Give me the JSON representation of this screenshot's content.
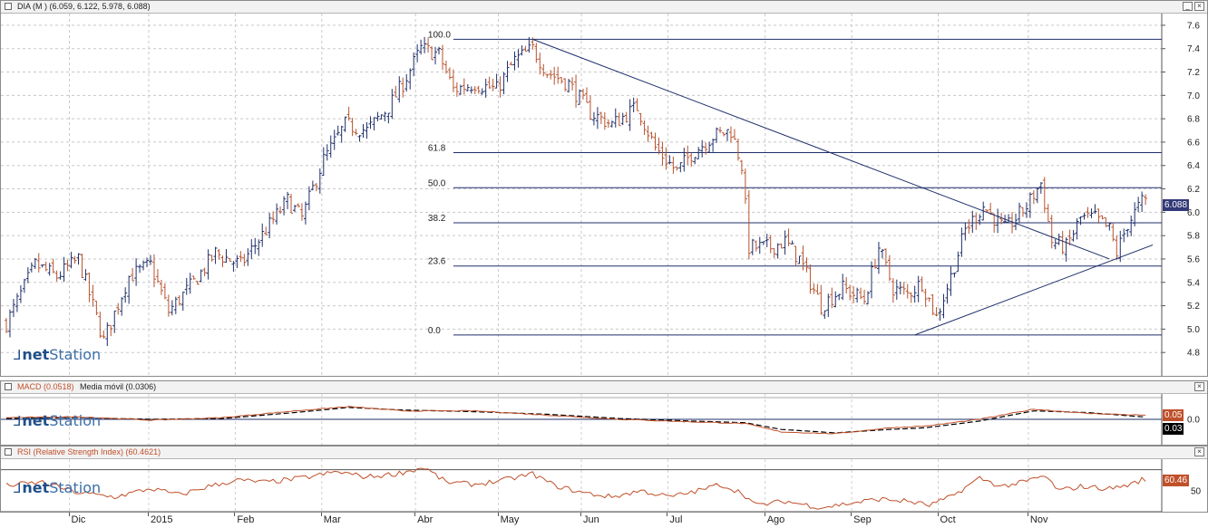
{
  "panels": {
    "price": {
      "title": "DIA (M ) (6.059, 6.122, 5.978, 6.088)",
      "last_label": "6.088",
      "last_value": 6.088
    },
    "macd": {
      "title_macd": "MACD (0.0518)",
      "title_signal": "Media móvil (0.0306)",
      "macd_label": "0.05",
      "signal_label": "0.03",
      "macd_color": "#c0502a",
      "signal_color": "#000000"
    },
    "rsi": {
      "title": "RSI (Relative Strength Index) (60.4621)",
      "last_label": "60.46",
      "level_label": "50",
      "color": "#c0502a"
    }
  },
  "logo": {
    "text_bold": "net",
    "text": "Station"
  },
  "window_buttons": {
    "min": "_",
    "close": "×"
  },
  "fib_levels": [
    {
      "label": "100.0",
      "value": 7.48
    },
    {
      "label": "61.8",
      "value": 6.51
    },
    {
      "label": "50.0",
      "value": 6.21
    },
    {
      "label": "38.2",
      "value": 5.91
    },
    {
      "label": "23.6",
      "value": 5.54
    },
    {
      "label": "0.0",
      "value": 4.95
    }
  ],
  "x_labels": [
    {
      "label": "Dic",
      "bar": 18
    },
    {
      "label": "2015",
      "bar": 40
    },
    {
      "label": "Feb",
      "bar": 64
    },
    {
      "label": "Mar",
      "bar": 88
    },
    {
      "label": "Abr",
      "bar": 114
    },
    {
      "label": "May",
      "bar": 137
    },
    {
      "label": "Jun",
      "bar": 160
    },
    {
      "label": "Jul",
      "bar": 184
    },
    {
      "label": "Ago",
      "bar": 211
    },
    {
      "label": "Sep",
      "bar": 235
    },
    {
      "label": "Oct",
      "bar": 259
    },
    {
      "label": "Nov",
      "bar": 284
    }
  ],
  "chart_data": {
    "type": "line",
    "subtype": "ohlc",
    "symbol": "DIA",
    "ylim": [
      4.6,
      7.7
    ],
    "yticks": [
      4.8,
      5.0,
      5.2,
      5.4,
      5.6,
      5.8,
      6.0,
      6.2,
      6.4,
      6.6,
      6.8,
      7.0,
      7.2,
      7.4,
      7.6
    ],
    "grid": true,
    "close_anchors": [
      [
        0,
        5.05
      ],
      [
        8,
        5.55
      ],
      [
        14,
        5.45
      ],
      [
        20,
        5.6
      ],
      [
        27,
        4.9
      ],
      [
        34,
        5.45
      ],
      [
        40,
        5.55
      ],
      [
        45,
        5.15
      ],
      [
        52,
        5.4
      ],
      [
        58,
        5.65
      ],
      [
        65,
        5.55
      ],
      [
        72,
        5.85
      ],
      [
        78,
        6.1
      ],
      [
        82,
        5.95
      ],
      [
        88,
        6.45
      ],
      [
        94,
        6.75
      ],
      [
        100,
        6.7
      ],
      [
        106,
        6.9
      ],
      [
        110,
        7.1
      ],
      [
        115,
        7.4
      ],
      [
        120,
        7.35
      ],
      [
        124,
        7.05
      ],
      [
        130,
        7.1
      ],
      [
        136,
        7.05
      ],
      [
        141,
        7.3
      ],
      [
        146,
        7.4
      ],
      [
        150,
        7.2
      ],
      [
        156,
        7.1
      ],
      [
        162,
        6.85
      ],
      [
        168,
        6.75
      ],
      [
        175,
        6.9
      ],
      [
        180,
        6.55
      ],
      [
        186,
        6.35
      ],
      [
        190,
        6.5
      ],
      [
        196,
        6.65
      ],
      [
        201,
        6.7
      ],
      [
        204,
        6.4
      ],
      [
        206,
        5.7
      ],
      [
        212,
        5.7
      ],
      [
        216,
        5.75
      ],
      [
        220,
        5.6
      ],
      [
        226,
        5.2
      ],
      [
        232,
        5.35
      ],
      [
        238,
        5.25
      ],
      [
        242,
        5.7
      ],
      [
        246,
        5.35
      ],
      [
        250,
        5.3
      ],
      [
        254,
        5.4
      ],
      [
        258,
        5.1
      ],
      [
        262,
        5.45
      ],
      [
        266,
        5.85
      ],
      [
        271,
        6.05
      ],
      [
        277,
        5.85
      ],
      [
        283,
        6.05
      ],
      [
        287,
        6.25
      ],
      [
        290,
        5.75
      ],
      [
        294,
        5.7
      ],
      [
        298,
        5.95
      ],
      [
        302,
        5.95
      ],
      [
        306,
        5.85
      ],
      [
        308,
        5.65
      ],
      [
        311,
        5.9
      ],
      [
        315,
        6.09
      ]
    ],
    "trendlines": [
      {
        "from": [
          146,
          7.48
        ],
        "to": [
          306,
          5.6
        ]
      },
      {
        "from": [
          252,
          4.95
        ],
        "to": [
          318,
          5.72
        ]
      }
    ],
    "macd": {
      "ylim": [
        -0.3,
        0.3
      ],
      "zero_label": "0.0",
      "macd_anchors": [
        [
          0,
          0.02
        ],
        [
          20,
          0.03
        ],
        [
          40,
          -0.01
        ],
        [
          60,
          0.02
        ],
        [
          80,
          0.1
        ],
        [
          95,
          0.15
        ],
        [
          110,
          0.1
        ],
        [
          130,
          0.1
        ],
        [
          150,
          0.05
        ],
        [
          170,
          0.0
        ],
        [
          190,
          -0.03
        ],
        [
          205,
          -0.05
        ],
        [
          215,
          -0.15
        ],
        [
          230,
          -0.17
        ],
        [
          245,
          -0.1
        ],
        [
          255,
          -0.08
        ],
        [
          270,
          0.0
        ],
        [
          285,
          0.12
        ],
        [
          300,
          0.07
        ],
        [
          315,
          0.05
        ]
      ],
      "signal_anchors": [
        [
          0,
          0.01
        ],
        [
          20,
          0.02
        ],
        [
          40,
          0.0
        ],
        [
          60,
          0.01
        ],
        [
          80,
          0.08
        ],
        [
          95,
          0.14
        ],
        [
          110,
          0.11
        ],
        [
          130,
          0.09
        ],
        [
          150,
          0.06
        ],
        [
          170,
          0.01
        ],
        [
          190,
          -0.02
        ],
        [
          205,
          -0.04
        ],
        [
          215,
          -0.12
        ],
        [
          230,
          -0.16
        ],
        [
          245,
          -0.12
        ],
        [
          255,
          -0.1
        ],
        [
          270,
          -0.02
        ],
        [
          285,
          0.1
        ],
        [
          300,
          0.08
        ],
        [
          315,
          0.03
        ]
      ]
    },
    "rsi": {
      "ylim": [
        30,
        80
      ],
      "levels": [
        30,
        70
      ],
      "anchors": [
        [
          0,
          55
        ],
        [
          10,
          58
        ],
        [
          20,
          48
        ],
        [
          30,
          44
        ],
        [
          40,
          52
        ],
        [
          48,
          46
        ],
        [
          56,
          54
        ],
        [
          64,
          60
        ],
        [
          72,
          58
        ],
        [
          82,
          62
        ],
        [
          92,
          68
        ],
        [
          100,
          63
        ],
        [
          108,
          66
        ],
        [
          116,
          72
        ],
        [
          122,
          58
        ],
        [
          130,
          56
        ],
        [
          138,
          60
        ],
        [
          146,
          66
        ],
        [
          152,
          55
        ],
        [
          160,
          48
        ],
        [
          168,
          44
        ],
        [
          176,
          50
        ],
        [
          184,
          44
        ],
        [
          192,
          50
        ],
        [
          198,
          56
        ],
        [
          204,
          48
        ],
        [
          208,
          36
        ],
        [
          216,
          40
        ],
        [
          226,
          34
        ],
        [
          234,
          38
        ],
        [
          242,
          42
        ],
        [
          250,
          40
        ],
        [
          256,
          36
        ],
        [
          262,
          44
        ],
        [
          270,
          62
        ],
        [
          276,
          54
        ],
        [
          282,
          58
        ],
        [
          288,
          64
        ],
        [
          292,
          50
        ],
        [
          298,
          54
        ],
        [
          306,
          52
        ],
        [
          312,
          56
        ],
        [
          315,
          60.46
        ]
      ]
    }
  }
}
